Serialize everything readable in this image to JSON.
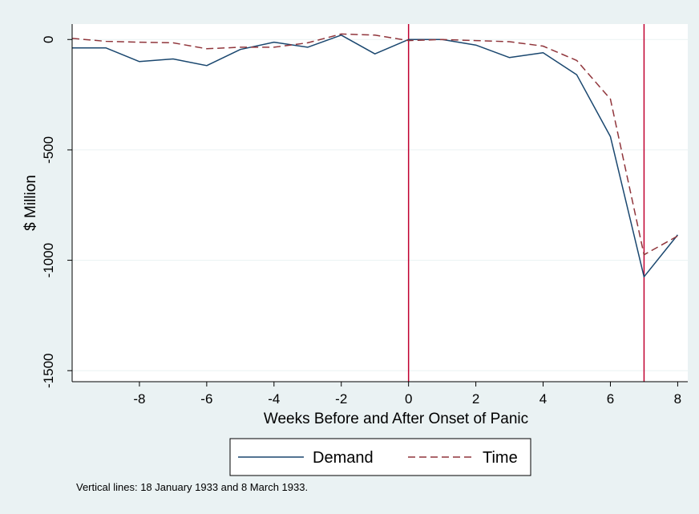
{
  "chart_data": {
    "type": "line",
    "xlabel": "Weeks Before and After Onset of Panic",
    "ylabel": "$ Million",
    "xlim": [
      -10,
      8.3
    ],
    "ylim": [
      -1550,
      70
    ],
    "x_ticks": [
      -8,
      -6,
      -4,
      -2,
      0,
      2,
      4,
      6,
      8
    ],
    "y_ticks": [
      0,
      -500,
      -1000,
      -1500
    ],
    "grid": "horizontal",
    "legend_position": "bottom",
    "vertical_lines": [
      0,
      7
    ],
    "note": "Vertical lines: 18 January 1933 and 8 March 1933.",
    "x": [
      -10,
      -9,
      -8,
      -7,
      -6,
      -5,
      -4,
      -3,
      -2,
      -1,
      0,
      1,
      2,
      3,
      4,
      5,
      6,
      7,
      8
    ],
    "series": [
      {
        "name": "Demand",
        "color": "#1a476f",
        "style": "solid",
        "values": [
          -38,
          -38,
          -100,
          -88,
          -118,
          -45,
          -12,
          -35,
          20,
          -65,
          0,
          0,
          -25,
          -82,
          -60,
          -160,
          -440,
          -1075,
          -885
        ]
      },
      {
        "name": "Time",
        "color": "#90353b",
        "style": "dashed",
        "values": [
          5,
          -8,
          -12,
          -15,
          -42,
          -35,
          -35,
          -15,
          25,
          20,
          -5,
          0,
          -5,
          -10,
          -30,
          -95,
          -270,
          -975,
          -890
        ]
      }
    ]
  },
  "colors": {
    "background": "#eaf2f3",
    "plot_background": "#ffffff",
    "vline": "#c00030",
    "grid": "#eaf2f3"
  }
}
